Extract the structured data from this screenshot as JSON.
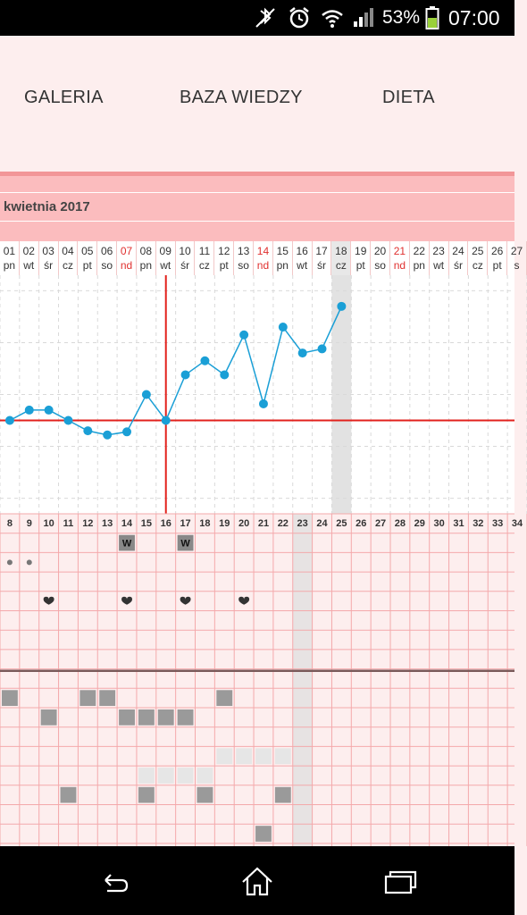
{
  "status_bar": {
    "battery_percent": "53%",
    "time": "07:00",
    "icons": [
      "bluetooth-off-icon",
      "alarm-icon",
      "wifi-icon",
      "signal-icon",
      "battery-icon"
    ]
  },
  "tabs": [
    {
      "label": "GALERIA"
    },
    {
      "label": "BAZA WIEDZY"
    },
    {
      "label": "DIETA"
    }
  ],
  "calendar": {
    "month_label": "kwietnia 2017",
    "days": [
      {
        "num": "01",
        "dow": "pn"
      },
      {
        "num": "02",
        "dow": "wt"
      },
      {
        "num": "03",
        "dow": "śr"
      },
      {
        "num": "04",
        "dow": "cz"
      },
      {
        "num": "05",
        "dow": "pt"
      },
      {
        "num": "06",
        "dow": "so"
      },
      {
        "num": "07",
        "dow": "nd"
      },
      {
        "num": "08",
        "dow": "pn"
      },
      {
        "num": "09",
        "dow": "wt"
      },
      {
        "num": "10",
        "dow": "śr"
      },
      {
        "num": "11",
        "dow": "cz"
      },
      {
        "num": "12",
        "dow": "pt"
      },
      {
        "num": "13",
        "dow": "so"
      },
      {
        "num": "14",
        "dow": "nd"
      },
      {
        "num": "15",
        "dow": "pn"
      },
      {
        "num": "16",
        "dow": "wt"
      },
      {
        "num": "17",
        "dow": "śr"
      },
      {
        "num": "18",
        "dow": "cz"
      },
      {
        "num": "19",
        "dow": "pt"
      },
      {
        "num": "20",
        "dow": "so"
      },
      {
        "num": "21",
        "dow": "nd"
      },
      {
        "num": "22",
        "dow": "pn"
      },
      {
        "num": "23",
        "dow": "wt"
      },
      {
        "num": "24",
        "dow": "śr"
      },
      {
        "num": "25",
        "dow": "cz"
      },
      {
        "num": "26",
        "dow": "pt"
      },
      {
        "num": "27",
        "dow": "s"
      }
    ],
    "today_index": 17,
    "cycle_days": [
      "8",
      "9",
      "10",
      "11",
      "12",
      "13",
      "14",
      "15",
      "16",
      "17",
      "18",
      "19",
      "20",
      "21",
      "22",
      "23",
      "24",
      "25",
      "26",
      "27",
      "28",
      "29",
      "30",
      "31",
      "32",
      "33",
      "34"
    ],
    "today_cycle_index": 15,
    "marker_w": "W"
  },
  "chart_data": {
    "type": "line",
    "title": "",
    "xlabel": "",
    "ylabel": "",
    "x": [
      "01",
      "02",
      "03",
      "04",
      "05",
      "06",
      "07",
      "08",
      "09",
      "10",
      "11",
      "12",
      "13",
      "14",
      "15",
      "16",
      "17",
      "18"
    ],
    "series": [
      {
        "values": [
          0.0,
          0.2,
          0.2,
          0.0,
          -0.2,
          -0.28,
          -0.22,
          0.5,
          0.0,
          0.88,
          1.15,
          0.88,
          1.65,
          0.32,
          1.8,
          1.3,
          1.38,
          2.2
        ]
      }
    ],
    "coverline": 0.0,
    "ovulation_x": "09",
    "ylim": [
      -1.8,
      2.8
    ],
    "grid": true,
    "line_color": "#1a9fd6",
    "coverline_color": "#e2211c"
  },
  "colors": {
    "accent": "#fbbcbe",
    "grid_line": "#f4a9ab",
    "today_column": "#e2e2e2"
  },
  "nav_bar": {
    "icons": [
      "back-icon",
      "home-icon",
      "recent-apps-icon"
    ]
  }
}
